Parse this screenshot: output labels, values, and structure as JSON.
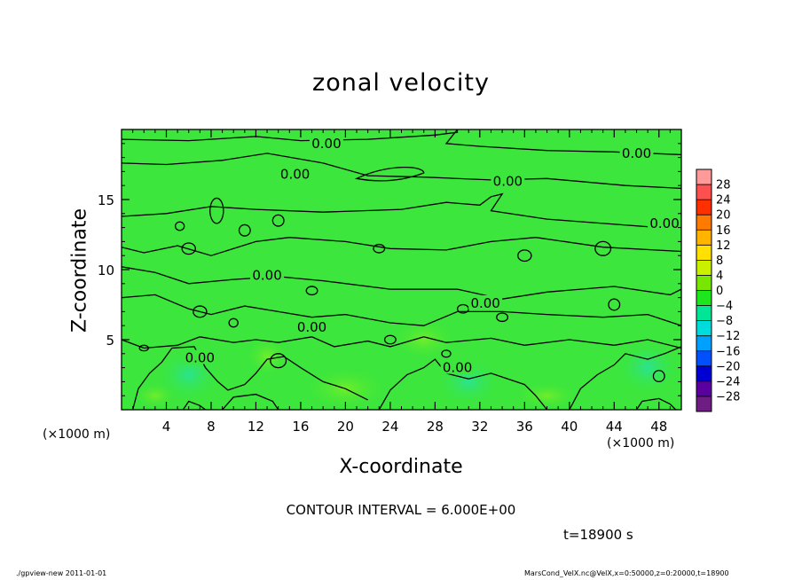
{
  "chart_data": {
    "type": "heatmap",
    "title": "zonal velocity",
    "xlabel": "X-coordinate",
    "ylabel": "Z-coordinate",
    "x_unit_label": "(×1000 m)",
    "xlim": [
      0,
      50
    ],
    "ylim": [
      0,
      20
    ],
    "x_ticks": [
      4,
      8,
      12,
      16,
      20,
      24,
      28,
      32,
      36,
      40,
      44,
      48
    ],
    "y_ticks": [
      5,
      10,
      15
    ],
    "colorbar": {
      "levels": [
        28,
        24,
        20,
        16,
        12,
        8,
        4,
        0,
        -4,
        -8,
        -12,
        -16,
        -20,
        -24,
        -28
      ],
      "label_texts": [
        "28",
        "24",
        "20",
        "16",
        "12",
        "8",
        "4",
        "0",
        "−4",
        "−8",
        "−12",
        "−16",
        "−20",
        "−24",
        "−28"
      ],
      "colors": [
        "#ff9a9a",
        "#ff5050",
        "#ff3000",
        "#ff7a00",
        "#ffb400",
        "#ffe000",
        "#c8f000",
        "#78e600",
        "#1ee61e",
        "#00e696",
        "#00dcdc",
        "#00a0ff",
        "#0050ff",
        "#0000d2",
        "#5a00a0",
        "#6e1e82"
      ]
    },
    "dominant_color": "#3ce63c",
    "contour_labels": [
      {
        "text": "0.00",
        "x": 18.3,
        "z": 19.0
      },
      {
        "text": "0.00",
        "x": 46.0,
        "z": 18.3
      },
      {
        "text": "0.00",
        "x": 15.5,
        "z": 16.8
      },
      {
        "text": "0.00",
        "x": 34.5,
        "z": 16.3
      },
      {
        "text": "0.00",
        "x": 48.5,
        "z": 13.3
      },
      {
        "text": "0.00",
        "x": 13.0,
        "z": 9.6
      },
      {
        "text": "0.00",
        "x": 32.5,
        "z": 7.6
      },
      {
        "text": "0.00",
        "x": 17.0,
        "z": 5.9
      },
      {
        "text": "0.00",
        "x": 7.0,
        "z": 3.7
      },
      {
        "text": "0.00",
        "x": 30.0,
        "z": 3.0
      }
    ],
    "contour_interval_text": "CONTOUR INTERVAL = 6.000E+00",
    "time_text": "t=18900 s"
  },
  "footer": {
    "left": "./gpview-new  2011-01-01",
    "right": "MarsCond_VelX.nc@VelX,x=0:50000,z=0:20000,t=18900"
  }
}
